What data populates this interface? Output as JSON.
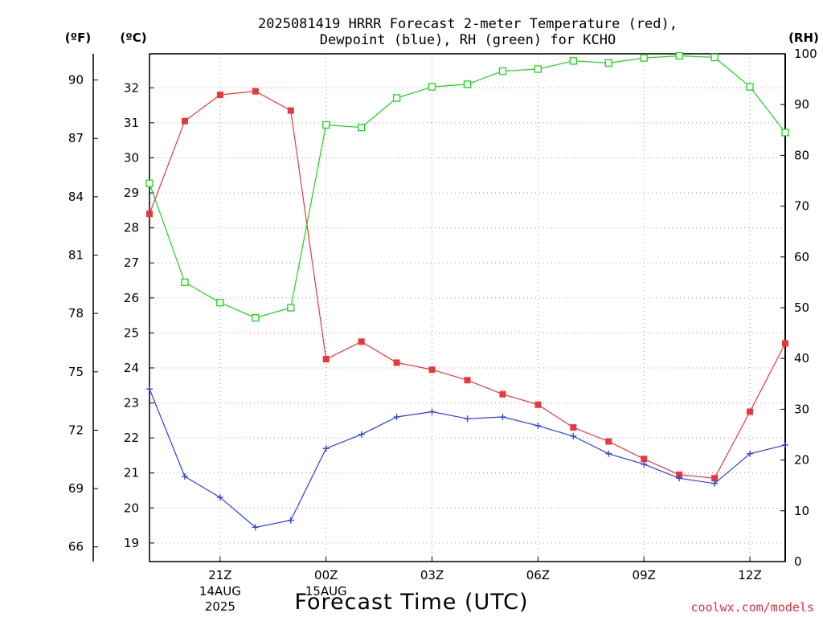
{
  "title_line1": "2025081419 HRRR Forecast 2-meter Temperature (red),",
  "title_line2": "Dewpoint (blue), RH (green) for KCHO",
  "units": {
    "fahrenheit": "(ºF)",
    "celsius": "(ºC)",
    "rh": "(RH)"
  },
  "xlabel": "Forecast Time (UTC)",
  "credit": "coolwx.com/models",
  "x_ticks": [
    {
      "hour": 2,
      "label": "21Z",
      "sub1": "14AUG",
      "sub2": "2025"
    },
    {
      "hour": 5,
      "label": "00Z",
      "sub1": "15AUG",
      "sub2": ""
    },
    {
      "hour": 8,
      "label": "03Z",
      "sub1": "",
      "sub2": ""
    },
    {
      "hour": 11,
      "label": "06Z",
      "sub1": "",
      "sub2": ""
    },
    {
      "hour": 14,
      "label": "09Z",
      "sub1": "",
      "sub2": ""
    },
    {
      "hour": 17,
      "label": "12Z",
      "sub1": "",
      "sub2": ""
    }
  ],
  "colors": {
    "temperature": "#e8383d",
    "dewpoint": "#2a3fe0",
    "rh": "#1fd11f",
    "grid": "#9a9a9a",
    "credit": "#e0303a"
  },
  "chart_data": {
    "type": "line",
    "title": "2025081419 HRRR Forecast 2-meter Temperature (red), Dewpoint (blue), RH (green) for KCHO",
    "xlabel": "Forecast Time (UTC)",
    "x": [
      "19Z",
      "20Z",
      "21Z",
      "22Z",
      "23Z",
      "00Z",
      "01Z",
      "02Z",
      "03Z",
      "04Z",
      "05Z",
      "06Z",
      "07Z",
      "08Z",
      "09Z",
      "10Z",
      "11Z",
      "12Z",
      "13Z"
    ],
    "ylim_celsius": [
      18.47,
      32.97
    ],
    "yticks_celsius": [
      19,
      20,
      21,
      22,
      23,
      24,
      25,
      26,
      27,
      28,
      29,
      30,
      31,
      32
    ],
    "yticks_fahrenheit": [
      66,
      69,
      72,
      75,
      78,
      81,
      84,
      87,
      90
    ],
    "ylim_rh": [
      0,
      100
    ],
    "yticks_rh": [
      0,
      10,
      20,
      30,
      40,
      50,
      60,
      70,
      80,
      90,
      100
    ],
    "grid": true,
    "series": [
      {
        "name": "Temperature (red)",
        "axis": "celsius",
        "marker": "filled-square",
        "values": [
          28.4,
          31.05,
          31.8,
          31.9,
          31.35,
          24.25,
          24.75,
          24.15,
          23.95,
          23.65,
          23.25,
          22.95,
          22.3,
          21.9,
          21.4,
          20.95,
          20.85,
          22.75,
          24.7
        ]
      },
      {
        "name": "Dewpoint (blue)",
        "axis": "celsius",
        "marker": "plus",
        "values": [
          23.4,
          20.9,
          20.3,
          19.45,
          19.65,
          21.7,
          22.1,
          22.6,
          22.75,
          22.55,
          22.6,
          22.35,
          22.05,
          21.55,
          21.25,
          20.85,
          20.7,
          21.55,
          21.8
        ]
      },
      {
        "name": "RH (green)",
        "axis": "rh",
        "marker": "open-square",
        "values": [
          74.5,
          55,
          51,
          48,
          50,
          86,
          85.5,
          91.3,
          93.5,
          94,
          96.6,
          97,
          98.6,
          98.2,
          99.2,
          99.6,
          99.3,
          93.5,
          84.5
        ]
      }
    ]
  }
}
